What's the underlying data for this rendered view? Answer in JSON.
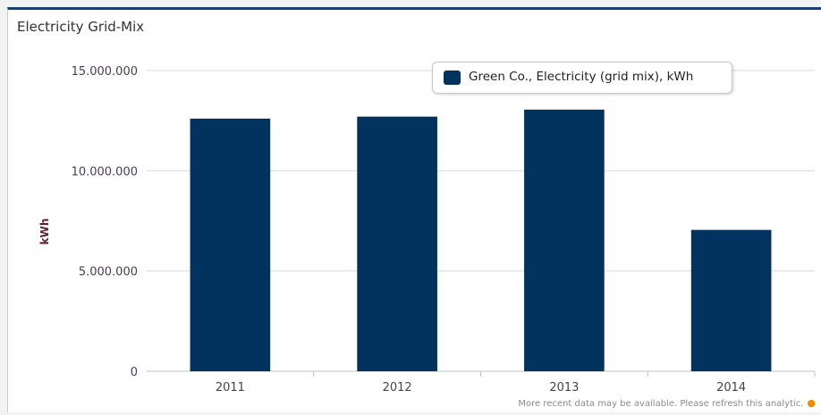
{
  "panel": {
    "title": "Electricity Grid-Mix",
    "footnote": "More recent data may be available. Please refresh this analytic.",
    "footnote_dot": "●"
  },
  "colors": {
    "bar": "#02335f",
    "grid": "#d9d9d9",
    "footnote_dot": "#f08c00"
  },
  "chart_data": {
    "type": "bar",
    "title": "Electricity Grid-Mix",
    "xlabel": "",
    "ylabel": "kWh",
    "categories": [
      "2011",
      "2012",
      "2013",
      "2014"
    ],
    "series": [
      {
        "name": "Green Co., Electricity (grid mix), kWh",
        "values": [
          12600000,
          12700000,
          13050000,
          7050000
        ]
      }
    ],
    "ylim": [
      0,
      15000000
    ],
    "yticks": [
      0,
      5000000,
      10000000,
      15000000
    ],
    "ytick_labels": [
      "0",
      "5.000.000",
      "10.000.000",
      "15.000.000"
    ],
    "grid": true,
    "legend_position": "top-right"
  }
}
